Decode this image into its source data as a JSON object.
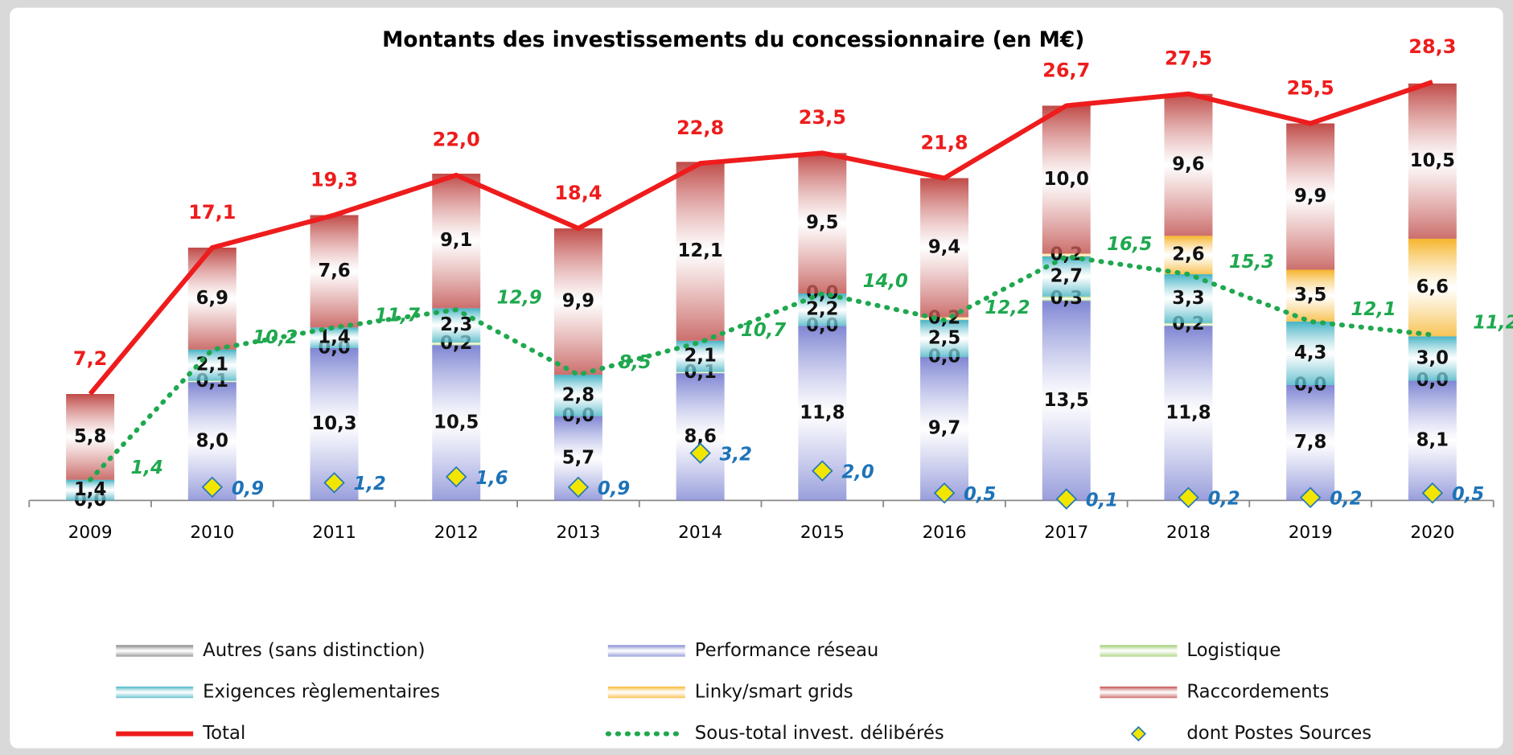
{
  "chart_data": {
    "type": "stacked-bar",
    "title": "Montants des investissements du concessionnaire (en M€)",
    "categories": [
      "2009",
      "2010",
      "2011",
      "2012",
      "2013",
      "2014",
      "2015",
      "2016",
      "2017",
      "2018",
      "2019",
      "2020"
    ],
    "ylim": [
      0,
      30
    ],
    "series": [
      {
        "name": "Autres (sans distinction)",
        "color": "#808080",
        "values": [
          0,
          null,
          null,
          null,
          null,
          null,
          null,
          null,
          null,
          null,
          null,
          null
        ],
        "value_labels": [
          "0,0",
          null,
          null,
          null,
          null,
          null,
          null,
          null,
          null,
          null,
          null,
          null
        ]
      },
      {
        "name": "Performance réseau",
        "color": "#7f86d3",
        "values": [
          0,
          8.0,
          10.3,
          10.5,
          5.7,
          8.6,
          11.8,
          9.7,
          13.5,
          11.8,
          7.8,
          8.1
        ],
        "value_labels": [
          "0,0",
          "8,0",
          "10,3",
          "10,5",
          "5,7",
          "8,6",
          "11,8",
          "9,7",
          "13,5",
          "11,8",
          "7,8",
          "8,1"
        ]
      },
      {
        "name": "Logistique",
        "color": "#9bcc6a",
        "values": [
          null,
          0.1,
          0.0,
          0.2,
          0.0,
          0.1,
          0.0,
          0.0,
          0.3,
          0.2,
          0.0,
          0.0
        ],
        "value_labels": [
          null,
          "0,1",
          "0,0",
          "0,2",
          "0,0",
          "0,1",
          "0,0",
          "0,0",
          "0,3",
          "0,2",
          "0,0",
          "0,0"
        ]
      },
      {
        "name": "Exigences règlementaires",
        "color": "#45b3c4",
        "values": [
          1.4,
          2.1,
          1.4,
          2.3,
          2.8,
          2.1,
          2.2,
          2.5,
          2.7,
          3.3,
          4.3,
          3.0
        ],
        "value_labels": [
          "1,4",
          "2,1",
          "1,4",
          "2,3",
          "2,8",
          "2,1",
          "2,2",
          "2,5",
          "2,7",
          "3,3",
          "4,3",
          "3,0"
        ]
      },
      {
        "name": "Linky/smart grids",
        "color": "#f6b52c",
        "values": [
          null,
          null,
          null,
          null,
          null,
          null,
          0.0,
          0.2,
          0.2,
          2.6,
          3.5,
          6.6
        ],
        "value_labels": [
          null,
          null,
          null,
          null,
          null,
          null,
          "0,0",
          "0,2",
          "0,2",
          "2,6",
          "3,5",
          "6,6"
        ]
      },
      {
        "name": "Raccordements",
        "color": "#bf4b48",
        "values": [
          5.8,
          6.9,
          7.6,
          9.1,
          9.9,
          12.1,
          9.5,
          9.4,
          10.0,
          9.6,
          9.9,
          10.5
        ],
        "value_labels": [
          "5,8",
          "6,9",
          "7,6",
          "9,1",
          "9,9",
          "12,1",
          "9,5",
          "9,4",
          "10,0",
          "9,6",
          "9,9",
          "10,5"
        ]
      }
    ],
    "total": {
      "name": "Total",
      "color": "#ee1c1c",
      "values": [
        7.2,
        17.1,
        19.3,
        22.0,
        18.4,
        22.8,
        23.5,
        21.8,
        26.7,
        27.5,
        25.5,
        28.3
      ],
      "value_labels": [
        "7,2",
        "17,1",
        "19,3",
        "22,0",
        "18,4",
        "22,8",
        "23,5",
        "21,8",
        "26,7",
        "27,5",
        "25,5",
        "28,3"
      ]
    },
    "subtotal": {
      "name": "Sous-total invest. délibérés",
      "color": "#1fa84f",
      "values": [
        1.4,
        10.2,
        11.7,
        12.9,
        8.5,
        10.7,
        14.0,
        12.2,
        16.5,
        15.3,
        12.1,
        11.2
      ],
      "value_labels": [
        "1,4",
        "10,2",
        "11,7",
        "12,9",
        "8,5",
        "10,7",
        "14,0",
        "12,2",
        "16,5",
        "15,3",
        "12,1",
        "11,2"
      ]
    },
    "postes": {
      "name": "dont Postes Sources",
      "color": "#f2e600",
      "values": [
        null,
        0.9,
        1.2,
        1.6,
        0.9,
        3.2,
        2.0,
        0.5,
        0.1,
        0.2,
        0.2,
        0.5
      ],
      "value_labels": [
        null,
        "0,9",
        "1,2",
        "1,6",
        "0,9",
        "3,2",
        "2,0",
        "0,5",
        "0,1",
        "0,2",
        "0,2",
        "0,5"
      ]
    }
  }
}
